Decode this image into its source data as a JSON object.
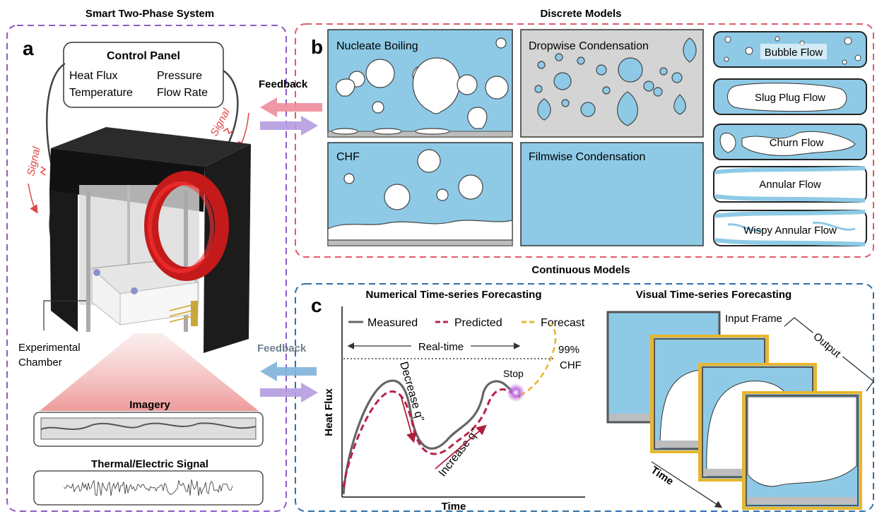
{
  "colors": {
    "purple": "#8e5bc4",
    "red": "#e05a6a",
    "blue": "#2f6fa8",
    "water": "#8ecae6",
    "gray_panel": "#d4d4d4",
    "dark_red": "#c4214a",
    "gold": "#e8b62c",
    "pink_arrow": "#ee8c9c",
    "violet_arrow": "#b49be0",
    "blue_arrow": "#7fb2da"
  },
  "panel_a": {
    "title": "Smart Two-Phase System",
    "letter": "a",
    "control_panel": {
      "title": "Control Panel",
      "items": [
        "Heat Flux",
        "Pressure",
        "Temperature",
        "Flow Rate"
      ]
    },
    "signal_label": "Signal",
    "chamber_label_1": "Experimental",
    "chamber_label_2": "Chamber",
    "imagery_label": "Imagery",
    "signal_panel_label": "Thermal/Electric Signal"
  },
  "panel_b": {
    "title": "Discrete Models",
    "letter": "b",
    "feedback_label": "Feedback",
    "boxes": [
      "Nucleate Boiling",
      "Dropwise Condensation",
      "CHF",
      "Filmwise Condensation"
    ],
    "flow_regimes": [
      "Bubble Flow",
      "Slug Plug Flow",
      "Churn Flow",
      "Annular Flow",
      "Wispy Annular Flow"
    ]
  },
  "panel_c": {
    "title": "Continuous Models",
    "letter": "c",
    "feedback_label": "Feedback",
    "numerical": {
      "title": "Numerical Time-series Forecasting",
      "legend": [
        "Measured",
        "Predicted",
        "Forecast"
      ],
      "realtime_label": "Real-time",
      "chf_label_1": "99%",
      "chf_label_2": "CHF",
      "stop_label": "Stop",
      "decrease_label": "Decrease q”",
      "increase_label": "Increase q”",
      "ylabel": "Heat Flux",
      "xlabel": "Time"
    },
    "visual": {
      "title": "Visual Time-series Forecasting",
      "input_label": "Input Frame",
      "output_label": "Output",
      "time_label": "Time"
    }
  }
}
